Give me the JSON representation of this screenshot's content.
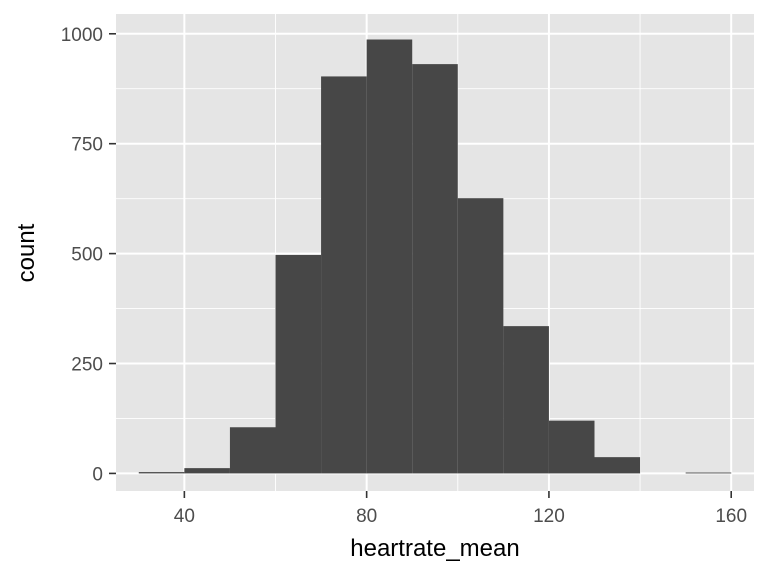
{
  "chart_data": {
    "type": "bar",
    "subtype": "histogram",
    "xlabel": "heartrate_mean",
    "ylabel": "count",
    "xlim": [
      25,
      165
    ],
    "ylim": [
      -40,
      1045
    ],
    "x_ticks": [
      40,
      80,
      120,
      160
    ],
    "x_tick_labels": [
      "40",
      "80",
      "120",
      "160"
    ],
    "y_ticks": [
      0,
      250,
      500,
      750,
      1000
    ],
    "y_tick_labels": [
      "0",
      "250",
      "500",
      "750",
      "1000"
    ],
    "bin_width": 10,
    "bins": [
      {
        "x0": 30,
        "x1": 40,
        "count": 3
      },
      {
        "x0": 40,
        "x1": 50,
        "count": 12
      },
      {
        "x0": 50,
        "x1": 60,
        "count": 105
      },
      {
        "x0": 60,
        "x1": 70,
        "count": 497
      },
      {
        "x0": 70,
        "x1": 80,
        "count": 903
      },
      {
        "x0": 80,
        "x1": 90,
        "count": 987
      },
      {
        "x0": 90,
        "x1": 100,
        "count": 931
      },
      {
        "x0": 100,
        "x1": 110,
        "count": 626
      },
      {
        "x0": 110,
        "x1": 120,
        "count": 335
      },
      {
        "x0": 120,
        "x1": 130,
        "count": 120
      },
      {
        "x0": 130,
        "x1": 140,
        "count": 37
      },
      {
        "x0": 140,
        "x1": 150,
        "count": 0
      },
      {
        "x0": 150,
        "x1": 160,
        "count": 2
      }
    ],
    "bar_color": "#474747",
    "panel_background": "#e5e5e5",
    "grid": true,
    "grid_color": "#ffffff",
    "legend": "none"
  }
}
